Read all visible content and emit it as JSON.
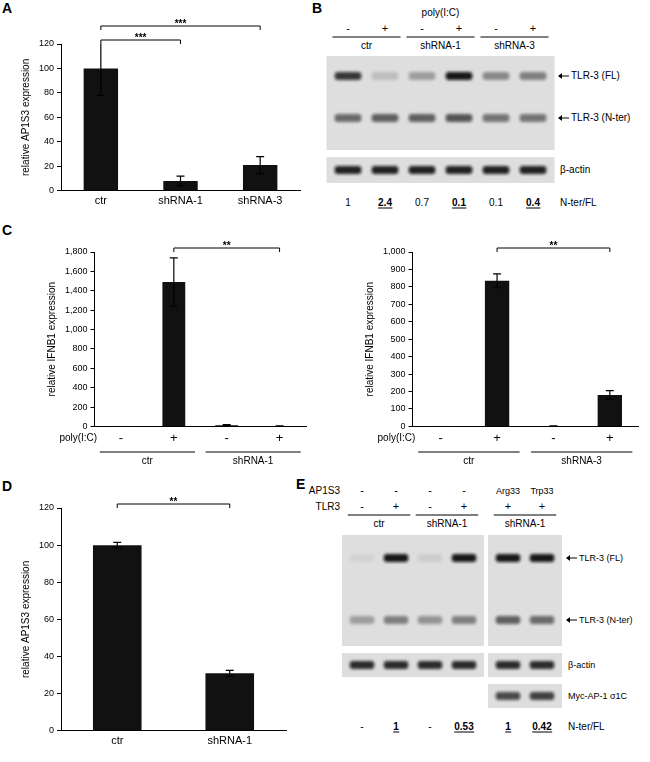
{
  "chart_data": [
    {
      "panel": "A",
      "type": "bar",
      "categories": [
        "ctr",
        "shRNA-1",
        "shRNA-3"
      ],
      "values": [
        100,
        8,
        21
      ],
      "errors": [
        22,
        4,
        7
      ],
      "color": "#111111",
      "y_label": "relative AP1S3 expression",
      "ylim": [
        0,
        120
      ],
      "yticks": [
        0,
        20,
        40,
        60,
        80,
        100,
        120
      ],
      "grid": false,
      "annotations": [
        {
          "text": "***",
          "between": [
            0,
            1
          ]
        },
        {
          "text": "***",
          "between": [
            0,
            2
          ]
        }
      ]
    },
    {
      "panel": "C",
      "type": "bar",
      "categories": [
        "-",
        "+",
        "-",
        "+"
      ],
      "groups": [
        "ctr",
        "shRNA-1"
      ],
      "x_label": "poly(I:C)",
      "values": [
        1,
        1490,
        12,
        4
      ],
      "errors": [
        0,
        250,
        6,
        2
      ],
      "color": "#111111",
      "y_label": "relative IFNB1 expression",
      "ylim": [
        0,
        1800
      ],
      "yticks": [
        0,
        200,
        400,
        600,
        800,
        {
          "value": 1000,
          "label": "1,000"
        },
        {
          "value": 1200,
          "label": "1,200"
        },
        {
          "value": 1400,
          "label": "1,400"
        },
        {
          "value": 1600,
          "label": "1,600"
        },
        {
          "value": 1800,
          "label": "1,800"
        }
      ],
      "grid": false,
      "annotations": [
        {
          "text": "**",
          "between": [
            1,
            3
          ]
        }
      ]
    },
    {
      "type": "bar",
      "categories": [
        "-",
        "+",
        "-",
        "+"
      ],
      "groups": [
        "ctr",
        "shRNA-3"
      ],
      "x_label": "poly(I:C)",
      "values": [
        1,
        835,
        2,
        180
      ],
      "errors": [
        0,
        40,
        1,
        25
      ],
      "color": "#111111",
      "y_label": "relative IFNB1 expression",
      "ylim": [
        0,
        1000
      ],
      "yticks": [
        0,
        100,
        200,
        300,
        400,
        500,
        600,
        700,
        800,
        900,
        {
          "value": 1000,
          "label": "1,000"
        }
      ],
      "grid": false,
      "annotations": [
        {
          "text": "**",
          "between": [
            1,
            3
          ]
        }
      ]
    },
    {
      "panel": "D",
      "type": "bar",
      "categories": [
        "ctr",
        "shRNA-1"
      ],
      "values": [
        100,
        31
      ],
      "errors": [
        1.5,
        1.5
      ],
      "color": "#111111",
      "y_label": "relative AP1S3 expression",
      "ylim": [
        0,
        120
      ],
      "yticks": [
        0,
        20,
        40,
        60,
        80,
        100,
        120
      ],
      "grid": false,
      "annotations": [
        {
          "text": "**",
          "between": [
            0,
            1
          ]
        }
      ]
    }
  ],
  "blots": [
    {
      "panel": "B",
      "conditions": [
        {
          "label": "poly(I:C)",
          "values": [
            "-",
            "+",
            "-",
            "+",
            "-",
            "+"
          ]
        }
      ],
      "groups": [
        "ctr",
        "shRNA-1",
        "shRNA-3"
      ],
      "bands": [
        "TLR-3 (FL)",
        "TLR-3 (N-ter)"
      ],
      "loading": "β-actin",
      "ratio_label": "N-ter/FL",
      "ratios": [
        1,
        2.4,
        0.7,
        0.1,
        0.1,
        0.4
      ]
    },
    {
      "panel": "E",
      "conditions": [
        {
          "label": "AP1S3",
          "values": [
            "-",
            "-",
            "-",
            "-",
            "Arg33",
            "Trp33"
          ]
        },
        {
          "label": "TLR3",
          "values": [
            "-",
            "+",
            "-",
            "+",
            "+",
            "+"
          ]
        }
      ],
      "groups": [
        "ctr",
        "shRNA-1",
        "shRNA-1"
      ],
      "bands": [
        "TLR-3 (FL)",
        "TLR-3 (N-ter)"
      ],
      "loading": "β-actin",
      "tag": "Myc-AP-1 σ1C",
      "ratio_label": "N-ter/FL",
      "ratios": [
        "-",
        1,
        "-",
        0.53,
        1,
        0.42
      ]
    }
  ]
}
